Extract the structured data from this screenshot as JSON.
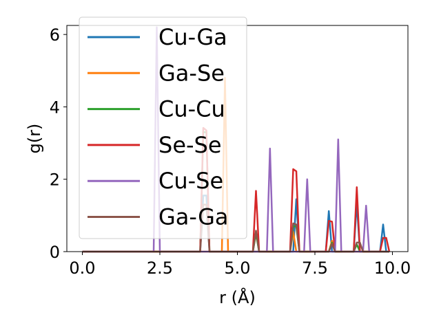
{
  "chart_data": {
    "type": "line",
    "title": "",
    "xlabel": "r (Å)",
    "ylabel": "g(r)",
    "xlim": [
      -0.5,
      10.5
    ],
    "ylim": [
      0,
      6.25
    ],
    "xticks": [
      0.0,
      2.5,
      5.0,
      7.5,
      10.0
    ],
    "xtick_labels": [
      "0.0",
      "2.5",
      "5.0",
      "7.5",
      "10.0"
    ],
    "yticks": [
      0,
      2,
      4,
      6
    ],
    "ytick_labels": [
      "0",
      "2",
      "4",
      "6"
    ],
    "grid": false,
    "legend_position": "upper-left",
    "series": [
      {
        "name": "Cu-Ga",
        "color": "#1f77b4",
        "points": [
          [
            0,
            0
          ],
          [
            3.8,
            0
          ],
          [
            3.9,
            1.55
          ],
          [
            4.0,
            1.55
          ],
          [
            4.1,
            0
          ],
          [
            6.8,
            0
          ],
          [
            6.9,
            1.45
          ],
          [
            7.0,
            0
          ],
          [
            7.85,
            0
          ],
          [
            7.95,
            1.12
          ],
          [
            8.05,
            0
          ],
          [
            8.75,
            0
          ],
          [
            8.85,
            1.35
          ],
          [
            8.95,
            0
          ],
          [
            9.6,
            0
          ],
          [
            9.7,
            0.75
          ],
          [
            9.8,
            0
          ],
          [
            9.9,
            0
          ]
        ]
      },
      {
        "name": "Ga-Se",
        "color": "#ff7f0e",
        "points": [
          [
            0,
            0
          ],
          [
            4.5,
            0
          ],
          [
            4.6,
            4.8
          ],
          [
            4.7,
            0
          ],
          [
            6.7,
            0
          ],
          [
            6.8,
            0.55
          ],
          [
            6.9,
            0
          ],
          [
            7.95,
            0
          ],
          [
            8.05,
            0.3
          ],
          [
            8.15,
            0
          ],
          [
            9.9,
            0
          ]
        ]
      },
      {
        "name": "Cu-Cu",
        "color": "#2ca02c",
        "points": [
          [
            0,
            0
          ],
          [
            3.8,
            0
          ],
          [
            3.9,
            3.3
          ],
          [
            4.0,
            3.3
          ],
          [
            4.1,
            0
          ],
          [
            5.5,
            0
          ],
          [
            5.6,
            0.5
          ],
          [
            5.7,
            0
          ],
          [
            6.7,
            0
          ],
          [
            6.8,
            0.7
          ],
          [
            6.9,
            0.7
          ],
          [
            7.0,
            0
          ],
          [
            7.95,
            0
          ],
          [
            8.05,
            0.25
          ],
          [
            8.15,
            0
          ],
          [
            8.75,
            0
          ],
          [
            8.85,
            0.2
          ],
          [
            8.95,
            0
          ],
          [
            9.9,
            0
          ]
        ]
      },
      {
        "name": "Se-Se",
        "color": "#d62728",
        "points": [
          [
            0,
            0
          ],
          [
            3.8,
            0
          ],
          [
            3.9,
            3.42
          ],
          [
            4.0,
            3.35
          ],
          [
            4.1,
            0
          ],
          [
            5.5,
            0
          ],
          [
            5.6,
            1.68
          ],
          [
            5.7,
            0
          ],
          [
            6.7,
            0
          ],
          [
            6.8,
            2.28
          ],
          [
            6.9,
            2.22
          ],
          [
            7.0,
            0
          ],
          [
            7.85,
            0
          ],
          [
            7.95,
            0.85
          ],
          [
            8.05,
            0.83
          ],
          [
            8.15,
            0
          ],
          [
            8.75,
            0
          ],
          [
            8.85,
            1.78
          ],
          [
            8.95,
            0
          ],
          [
            9.6,
            0
          ],
          [
            9.7,
            0.38
          ],
          [
            9.8,
            0.38
          ],
          [
            9.9,
            0
          ]
        ]
      },
      {
        "name": "Cu-Se",
        "color": "#9467bd",
        "points": [
          [
            0,
            0
          ],
          [
            2.3,
            0
          ],
          [
            2.4,
            6.2
          ],
          [
            2.5,
            0
          ],
          [
            5.95,
            0
          ],
          [
            6.05,
            2.85
          ],
          [
            6.15,
            0
          ],
          [
            7.15,
            0
          ],
          [
            7.25,
            2.0
          ],
          [
            7.35,
            0
          ],
          [
            8.15,
            0
          ],
          [
            8.25,
            3.1
          ],
          [
            8.35,
            0
          ],
          [
            9.05,
            0
          ],
          [
            9.15,
            1.27
          ],
          [
            9.25,
            0
          ],
          [
            9.9,
            0
          ]
        ]
      },
      {
        "name": "Ga-Ga",
        "color": "#8c564b",
        "points": [
          [
            0,
            0
          ],
          [
            3.8,
            0
          ],
          [
            3.9,
            1.3
          ],
          [
            4.0,
            1.3
          ],
          [
            4.1,
            0
          ],
          [
            5.5,
            0
          ],
          [
            5.6,
            0.58
          ],
          [
            5.7,
            0
          ],
          [
            6.7,
            0
          ],
          [
            6.8,
            0.78
          ],
          [
            6.9,
            0.75
          ],
          [
            7.0,
            0
          ],
          [
            7.95,
            0
          ],
          [
            8.05,
            0.22
          ],
          [
            8.15,
            0
          ],
          [
            8.75,
            0
          ],
          [
            8.85,
            0.25
          ],
          [
            8.95,
            0.25
          ],
          [
            9.05,
            0
          ],
          [
            9.9,
            0
          ]
        ]
      }
    ]
  }
}
